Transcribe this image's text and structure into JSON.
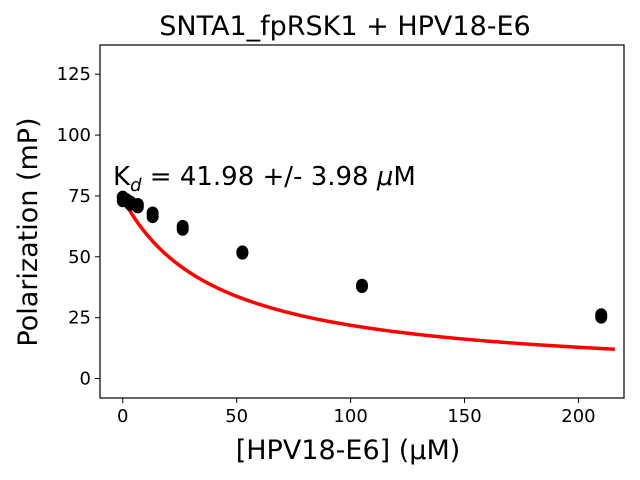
{
  "chart_data": {
    "type": "scatter",
    "title": "SNTA1_fpRSK1 + HPV18-E6",
    "xlabel": "[HPV18-E6] (µM)",
    "ylabel": "Polarization (mP)",
    "xlim": [
      -10,
      220
    ],
    "ylim": [
      -8,
      137
    ],
    "xticks": [
      0,
      50,
      100,
      150,
      200
    ],
    "yticks": [
      0,
      25,
      50,
      75,
      100,
      125
    ],
    "grid": false,
    "annotation": {
      "prefix": "K",
      "subscript": "d",
      "value_text": " = 41.98 +/- 3.98 ",
      "unit_symbol": "μ",
      "unit_letter": "M"
    },
    "series": [
      {
        "kind": "points",
        "color": "#000000",
        "points": [
          [
            0,
            74.5
          ],
          [
            0,
            73.0
          ],
          [
            1.6,
            73.5
          ],
          [
            3.3,
            72.5
          ],
          [
            3.3,
            71.5
          ],
          [
            6.6,
            71.5
          ],
          [
            6.6,
            70.5
          ],
          [
            13.1,
            68.0
          ],
          [
            13.1,
            66.5
          ],
          [
            26.3,
            62.5
          ],
          [
            26.3,
            61.3
          ],
          [
            52.5,
            52.0
          ],
          [
            52.5,
            51.5
          ],
          [
            105,
            38.3
          ],
          [
            105,
            37.8
          ],
          [
            210,
            26.2
          ],
          [
            210,
            25.2
          ]
        ]
      },
      {
        "kind": "fit",
        "color": "#ff0000",
        "model": {
          "bottom": 74,
          "top": 0,
          "kd": 41.98,
          "x_max": 216
        }
      }
    ]
  }
}
